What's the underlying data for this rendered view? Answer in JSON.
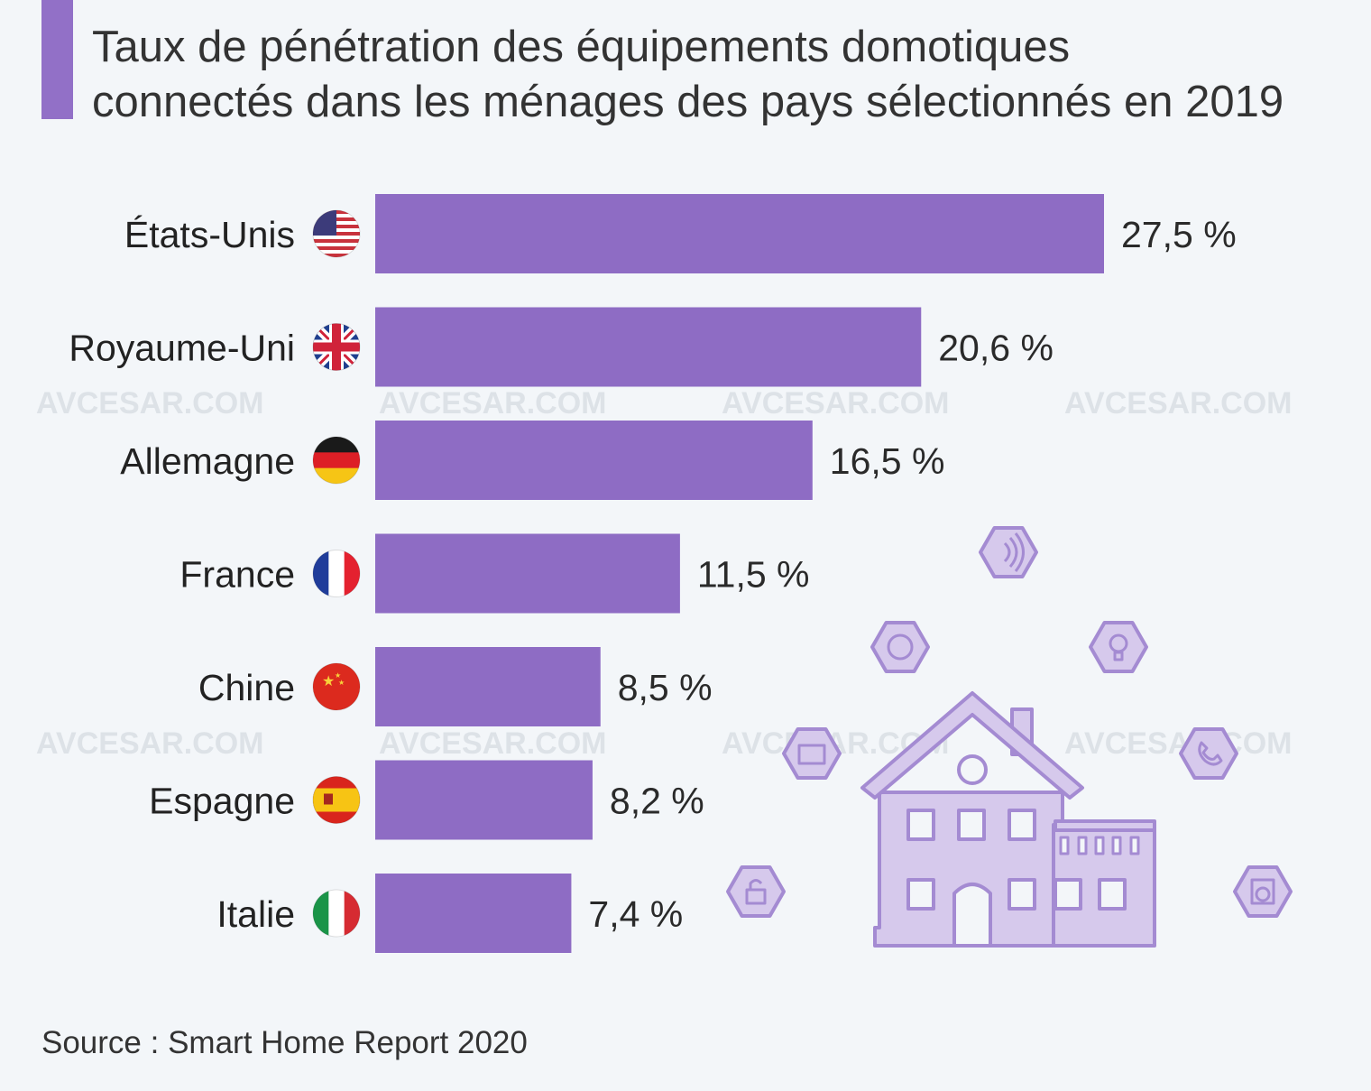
{
  "header": {
    "title_line1": "Taux de pénétration des équipements domotiques",
    "title_line2": "connectés dans les ménages des pays sélectionnés en 2019"
  },
  "footer": {
    "source": "Source : Smart Home Report 2020"
  },
  "watermark": "AVCESAR.COM",
  "colors": {
    "bar": "#8e6cc4",
    "accent": "#9270c7",
    "illustration_fill": "#d6c9ec",
    "illustration_stroke": "#a48bd2",
    "background": "#f3f6f9"
  },
  "chart_data": {
    "type": "bar",
    "orientation": "horizontal",
    "title": "Taux de pénétration des équipements domotiques connectés dans les ménages des pays sélectionnés en 2019",
    "categories": [
      "États-Unis",
      "Royaume-Uni",
      "Allemagne",
      "France",
      "Chine",
      "Espagne",
      "Italie"
    ],
    "values": [
      27.5,
      20.6,
      16.5,
      11.5,
      8.5,
      8.2,
      7.4
    ],
    "value_labels": [
      "27,5 %",
      "20,6 %",
      "16,5 %",
      "11,5 %",
      "8,5 %",
      "8,2 %",
      "7,4 %"
    ],
    "flags": [
      "us-flag-icon",
      "uk-flag-icon",
      "germany-flag-icon",
      "france-flag-icon",
      "china-flag-icon",
      "spain-flag-icon",
      "italy-flag-icon"
    ],
    "unit": "%",
    "xlabel": "",
    "ylabel": "",
    "xlim": [
      0,
      27.5
    ]
  }
}
